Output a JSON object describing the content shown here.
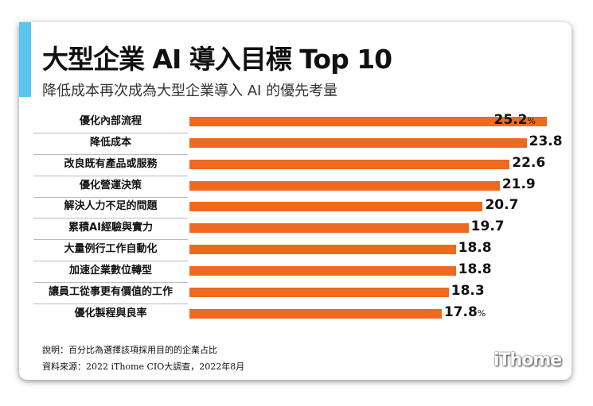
{
  "colors": {
    "accent": "#5bc4f1",
    "bar": "#ee6a1f"
  },
  "chart_data": {
    "type": "bar",
    "orientation": "horizontal",
    "title": "大型企業 AI 導入目標 Top 10",
    "subtitle": "降低成本再次成為大型企業導入 AI 的優先考量",
    "categories": [
      "優化內部流程",
      "降低成本",
      "改良既有產品或服務",
      "優化營運決策",
      "解決人力不足的問題",
      "累積AI經驗與實力",
      "大量例行工作自動化",
      "加速企業數位轉型",
      "讓員工從事更有價值的工作",
      "優化製程與良率"
    ],
    "values": [
      25.2,
      23.8,
      22.6,
      21.9,
      20.7,
      19.7,
      18.8,
      18.8,
      18.3,
      17.8
    ],
    "value_labels": [
      "25.2",
      "23.8",
      "22.6",
      "21.9",
      "20.7",
      "19.7",
      "18.8",
      "18.8",
      "18.3",
      "17.8"
    ],
    "unit": "%"
  },
  "notes": {
    "explain": "說明：百分比為選擇該項採用目的的企業占比",
    "source": "資料來源：2022 iThome CIO大調查，2022年8月"
  },
  "logo": "iThome"
}
